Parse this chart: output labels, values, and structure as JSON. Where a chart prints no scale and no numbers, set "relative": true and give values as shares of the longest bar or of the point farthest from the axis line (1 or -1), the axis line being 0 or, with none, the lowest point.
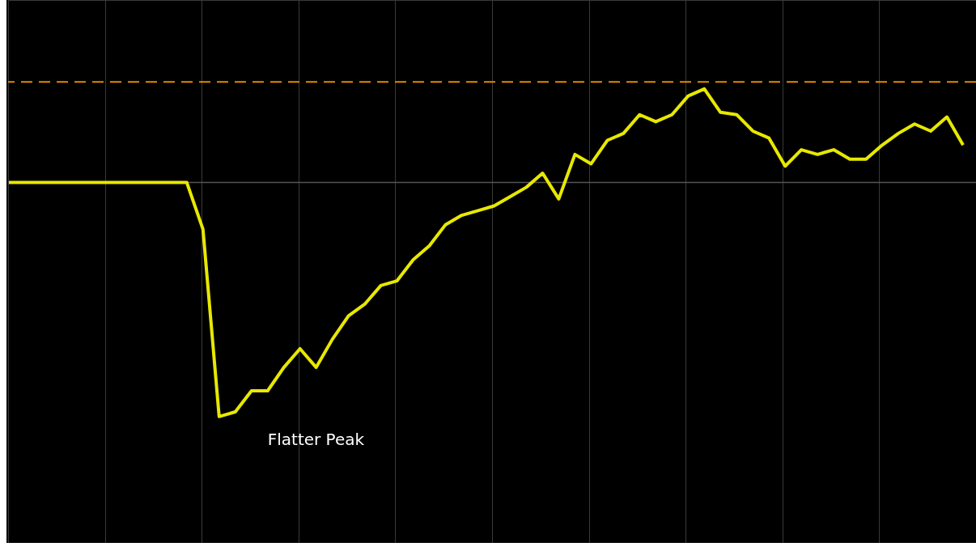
{
  "chart_data": {
    "type": "line",
    "relative": true,
    "categories": [
      null,
      null,
      null,
      null,
      null,
      null,
      null,
      null,
      null,
      null,
      null,
      null,
      null,
      null,
      null,
      null,
      null,
      null,
      null,
      null,
      null,
      null,
      null,
      null,
      null,
      null,
      null,
      null,
      null,
      null,
      null,
      null,
      null,
      null,
      null,
      null,
      null,
      null,
      null,
      null,
      null,
      null,
      null,
      null,
      null,
      null,
      null,
      null,
      null,
      null,
      null,
      null,
      null,
      null,
      null,
      null,
      null,
      null,
      null,
      null
    ],
    "series": [
      {
        "color": "#e8e800",
        "values": [
          0,
          0,
          0,
          0,
          0,
          0,
          0,
          0,
          0,
          0,
          0,
          0,
          -0.2,
          -1,
          -0.98,
          -0.89,
          -0.89,
          -0.79,
          -0.71,
          -0.79,
          -0.67,
          -0.57,
          -0.52,
          -0.44,
          -0.42,
          -0.33,
          -0.27,
          -0.18,
          -0.14,
          -0.12,
          -0.1,
          -0.06,
          -0.02,
          0.04,
          -0.07,
          0.12,
          0.08,
          0.18,
          0.21,
          0.29,
          0.26,
          0.29,
          0.37,
          0.4,
          0.3,
          0.29,
          0.22,
          0.19,
          0.07,
          0.14,
          0.12,
          0.14,
          0.1,
          0.1,
          0.16,
          0.21,
          0.25,
          0.22,
          0.28,
          0.16
        ]
      }
    ],
    "ref_lines": [
      {
        "axis": "y",
        "value": 0.43,
        "color": "#e08a00",
        "line_style": "dashed"
      }
    ],
    "annotations": [
      "Flatter Peak"
    ],
    "grid": true,
    "line_style": "solid",
    "marker": "none"
  }
}
